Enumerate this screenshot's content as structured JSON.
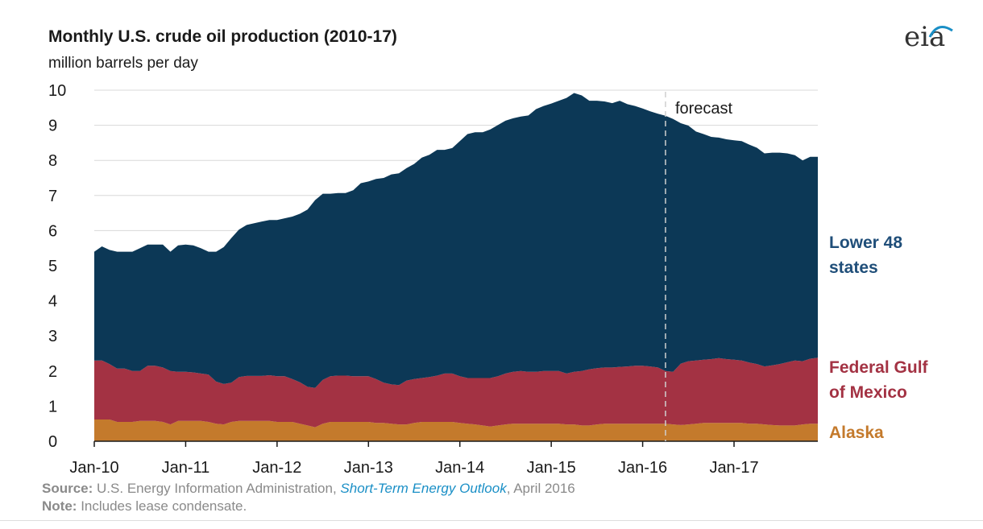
{
  "header": {
    "title": "Monthly U.S. crude oil production (2010-17)",
    "subtitle": "million barrels per day",
    "logo": "eia"
  },
  "footer": {
    "source_label": "Source:",
    "source_text": "U.S. Energy Information Administration,",
    "source_link": "Short-Term Energy Outlook",
    "source_date": ", April 2016",
    "note_label": "Note:",
    "note_text": "Includes lease condensate."
  },
  "chart_data": {
    "type": "area",
    "stacked": true,
    "title": "Monthly U.S. crude oil production (2010-17)",
    "ylabel": "million barrels per day",
    "xlabel": "",
    "ylim": [
      0,
      10
    ],
    "yticks": [
      0,
      1,
      2,
      3,
      4,
      5,
      6,
      7,
      8,
      9,
      10
    ],
    "x_tick_labels": [
      "Jan-10",
      "Jan-11",
      "Jan-12",
      "Jan-13",
      "Jan-14",
      "Jan-15",
      "Jan-16",
      "Jan-17"
    ],
    "x_start": "2010-01",
    "x_end": "2017-12",
    "grid": true,
    "annotation": {
      "label": "forecast",
      "x": "2016-04"
    },
    "series": [
      {
        "name": "Alaska",
        "color": "#c47a2c",
        "values": [
          0.62,
          0.62,
          0.62,
          0.55,
          0.55,
          0.55,
          0.58,
          0.58,
          0.58,
          0.55,
          0.48,
          0.58,
          0.58,
          0.58,
          0.58,
          0.55,
          0.5,
          0.48,
          0.55,
          0.58,
          0.58,
          0.58,
          0.58,
          0.58,
          0.55,
          0.55,
          0.55,
          0.5,
          0.45,
          0.4,
          0.5,
          0.55,
          0.55,
          0.55,
          0.55,
          0.55,
          0.55,
          0.52,
          0.52,
          0.5,
          0.48,
          0.48,
          0.52,
          0.55,
          0.55,
          0.55,
          0.55,
          0.55,
          0.52,
          0.5,
          0.48,
          0.45,
          0.42,
          0.45,
          0.48,
          0.5,
          0.5,
          0.5,
          0.5,
          0.5,
          0.5,
          0.5,
          0.48,
          0.48,
          0.45,
          0.45,
          0.48,
          0.5,
          0.5,
          0.5,
          0.5,
          0.5,
          0.5,
          0.5,
          0.5,
          0.5,
          0.48,
          0.46,
          0.48,
          0.5,
          0.52,
          0.52,
          0.52,
          0.52,
          0.52,
          0.52,
          0.5,
          0.5,
          0.48,
          0.46,
          0.45,
          0.45,
          0.45,
          0.48,
          0.5,
          0.5
        ]
      },
      {
        "name": "Federal Gulf of Mexico",
        "color": "#a33243",
        "values": [
          1.68,
          1.68,
          1.58,
          1.52,
          1.52,
          1.45,
          1.42,
          1.57,
          1.57,
          1.55,
          1.52,
          1.4,
          1.4,
          1.38,
          1.35,
          1.35,
          1.2,
          1.15,
          1.12,
          1.25,
          1.28,
          1.28,
          1.28,
          1.3,
          1.3,
          1.3,
          1.22,
          1.18,
          1.1,
          1.12,
          1.25,
          1.3,
          1.32,
          1.32,
          1.3,
          1.3,
          1.3,
          1.25,
          1.15,
          1.12,
          1.12,
          1.25,
          1.25,
          1.25,
          1.28,
          1.32,
          1.38,
          1.38,
          1.33,
          1.3,
          1.32,
          1.35,
          1.38,
          1.4,
          1.45,
          1.48,
          1.5,
          1.48,
          1.48,
          1.5,
          1.5,
          1.5,
          1.45,
          1.5,
          1.55,
          1.6,
          1.6,
          1.6,
          1.6,
          1.62,
          1.63,
          1.65,
          1.65,
          1.63,
          1.6,
          1.5,
          1.5,
          1.75,
          1.8,
          1.8,
          1.8,
          1.82,
          1.85,
          1.82,
          1.8,
          1.78,
          1.74,
          1.7,
          1.65,
          1.7,
          1.75,
          1.8,
          1.85,
          1.8,
          1.85,
          1.88
        ]
      },
      {
        "name": "Lower 48 states",
        "color": "#0c3856",
        "values": [
          3.1,
          3.25,
          3.25,
          3.33,
          3.33,
          3.4,
          3.5,
          3.45,
          3.45,
          3.5,
          3.4,
          3.6,
          3.62,
          3.62,
          3.57,
          3.5,
          3.7,
          3.9,
          4.12,
          4.2,
          4.3,
          4.35,
          4.4,
          4.42,
          4.45,
          4.5,
          4.63,
          4.8,
          5.05,
          5.35,
          5.3,
          5.2,
          5.2,
          5.2,
          5.3,
          5.5,
          5.55,
          5.7,
          5.83,
          5.98,
          6.03,
          6.05,
          6.13,
          6.28,
          6.33,
          6.43,
          6.37,
          6.42,
          6.7,
          6.95,
          7.0,
          7.0,
          7.08,
          7.16,
          7.2,
          7.22,
          7.25,
          7.3,
          7.48,
          7.55,
          7.62,
          7.7,
          7.85,
          7.94,
          7.85,
          7.65,
          7.62,
          7.58,
          7.53,
          7.58,
          7.47,
          7.4,
          7.33,
          7.27,
          7.23,
          7.27,
          7.2,
          6.85,
          6.71,
          6.52,
          6.43,
          6.33,
          6.28,
          6.26,
          6.25,
          6.25,
          6.21,
          6.16,
          6.07,
          6.06,
          6.02,
          5.95,
          5.85,
          5.72,
          5.75,
          5.72
        ]
      }
    ]
  }
}
